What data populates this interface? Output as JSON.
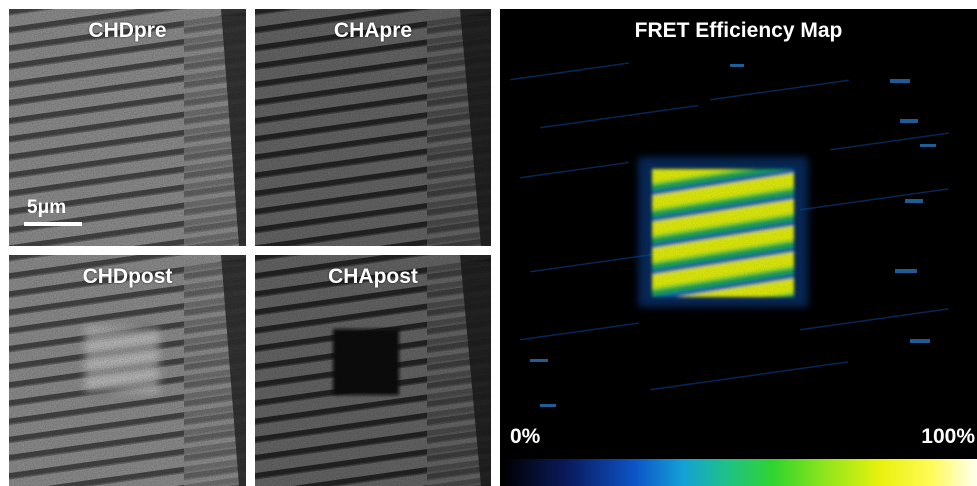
{
  "panels": {
    "chd_pre": {
      "title": "CHDpre"
    },
    "cha_pre": {
      "title": "CHApre"
    },
    "chd_post": {
      "title": "CHDpost"
    },
    "cha_post": {
      "title": "CHApost"
    },
    "fret_map": {
      "title": "FRET Efficiency Map"
    }
  },
  "scale_bar": {
    "label": "5μm"
  },
  "colorbar": {
    "min_label": "0%",
    "max_label": "100%",
    "colormap": [
      "#000000",
      "#0d55c8",
      "#1fc08a",
      "#2fd42f",
      "#eaf20f",
      "#fffff0"
    ]
  },
  "colors": {
    "background": "#ffffff",
    "label_text": "#ffffff",
    "fret_high": "#e8f216",
    "fret_mid": "#2fd42f",
    "fret_low": "#0d55c8"
  }
}
